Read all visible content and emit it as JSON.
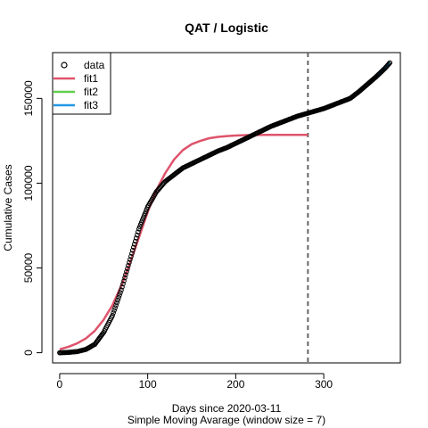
{
  "chart_data": {
    "type": "line",
    "title": "QAT / Logistic",
    "xlabel": "Days since 2020-03-11",
    "xlabel2": "Simple Moving Avarage (window size = 7)",
    "ylabel": "Cumulative Cases",
    "xlim": [
      -8,
      387
    ],
    "ylim": [
      -6000,
      177000
    ],
    "x_ticks": [
      0,
      100,
      200,
      300
    ],
    "y_ticks": [
      0,
      50000,
      100000,
      150000
    ],
    "x_tick_labels": [
      "0",
      "100",
      "200",
      "300"
    ],
    "y_tick_labels": [
      "0",
      "50000",
      "100000",
      "150000"
    ],
    "cutoff_day": 282,
    "grid": false,
    "legend_position": "top-left",
    "legend": [
      {
        "label": "data",
        "kind": "point",
        "color": "#000000"
      },
      {
        "label": "fit1",
        "kind": "line",
        "color": "#DF536B"
      },
      {
        "label": "fit2",
        "kind": "line",
        "color": "#61D04F"
      },
      {
        "label": "fit3",
        "kind": "line",
        "color": "#2297E6"
      }
    ],
    "series": [
      {
        "name": "data",
        "style": "points",
        "color": "#000000",
        "x": [
          0,
          10,
          20,
          30,
          40,
          50,
          60,
          70,
          80,
          90,
          100,
          110,
          120,
          130,
          140,
          150,
          160,
          170,
          180,
          190,
          200,
          210,
          220,
          230,
          240,
          250,
          260,
          270,
          280,
          290,
          300,
          310,
          320,
          330,
          340,
          350,
          360,
          370,
          375
        ],
        "y": [
          0,
          200,
          700,
          2000,
          5000,
          12000,
          22000,
          37000,
          55000,
          73000,
          86000,
          95000,
          101000,
          105000,
          109000,
          111500,
          114000,
          116500,
          119000,
          121000,
          123500,
          126000,
          128500,
          131000,
          133500,
          135500,
          137500,
          139500,
          141000,
          142500,
          144000,
          146000,
          148000,
          150000,
          154000,
          158500,
          163000,
          168000,
          171000
        ]
      },
      {
        "name": "fit1",
        "style": "line",
        "color": "#DF536B",
        "x": [
          0,
          10,
          20,
          30,
          40,
          50,
          60,
          70,
          80,
          90,
          100,
          110,
          120,
          130,
          140,
          150,
          160,
          170,
          180,
          190,
          200,
          210,
          220,
          240,
          260,
          282
        ],
        "y": [
          2000,
          3500,
          5500,
          8500,
          13000,
          19500,
          28000,
          39500,
          53000,
          68000,
          83000,
          96000,
          106000,
          114000,
          119500,
          123000,
          125000,
          126500,
          127300,
          127800,
          128100,
          128300,
          128400,
          128500,
          128500,
          128500
        ]
      },
      {
        "name": "fit2",
        "style": "line",
        "color": "#61D04F",
        "x": [
          282,
          290,
          300,
          310,
          320,
          330,
          340,
          350,
          360,
          370,
          375
        ],
        "y": [
          141000,
          142500,
          143800,
          145800,
          147800,
          150200,
          154200,
          158800,
          163300,
          168200,
          171000
        ]
      },
      {
        "name": "fit3",
        "style": "line",
        "color": "#2297E6",
        "x": [
          282,
          290,
          300,
          310,
          320,
          330,
          340,
          350,
          360,
          370,
          375
        ],
        "y": [
          141000,
          142400,
          143700,
          145700,
          147700,
          150100,
          154100,
          158700,
          163200,
          168100,
          170900
        ]
      }
    ]
  }
}
